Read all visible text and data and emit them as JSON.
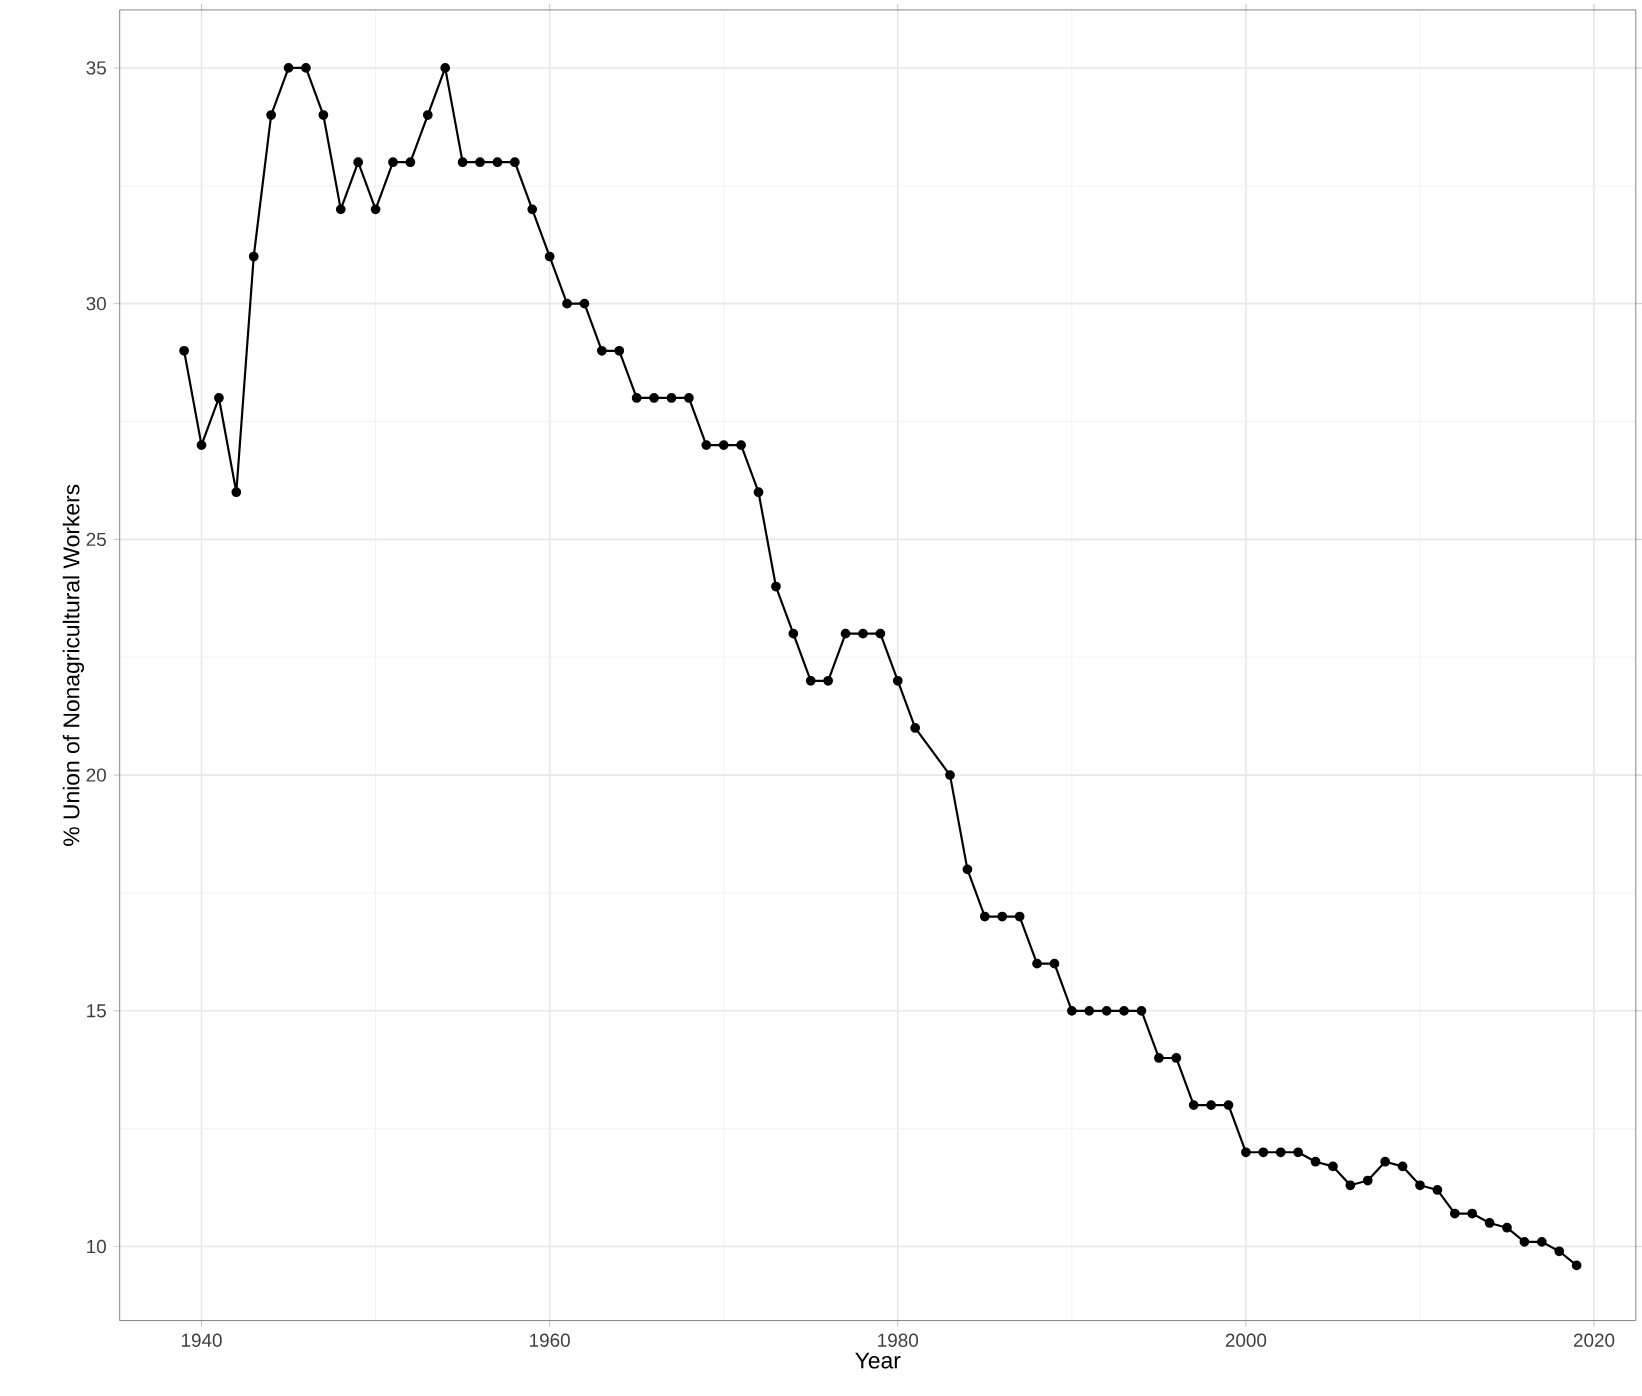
{
  "chart_data": {
    "type": "line",
    "xlabel": "Year",
    "ylabel": "% Union of Nonagricultural Workers",
    "x": [
      1939,
      1940,
      1941,
      1942,
      1943,
      1944,
      1945,
      1946,
      1947,
      1948,
      1949,
      1950,
      1951,
      1952,
      1953,
      1954,
      1955,
      1956,
      1957,
      1958,
      1959,
      1960,
      1961,
      1962,
      1963,
      1964,
      1965,
      1966,
      1967,
      1968,
      1969,
      1970,
      1971,
      1972,
      1973,
      1974,
      1975,
      1976,
      1977,
      1978,
      1979,
      1980,
      1981,
      1983,
      1984,
      1985,
      1986,
      1987,
      1988,
      1989,
      1990,
      1991,
      1992,
      1993,
      1994,
      1995,
      1996,
      1997,
      1998,
      1999,
      2000,
      2001,
      2002,
      2003,
      2004,
      2005,
      2006,
      2007,
      2008,
      2009,
      2010,
      2011,
      2012,
      2013,
      2014,
      2015,
      2016,
      2017,
      2018,
      2019
    ],
    "series": [
      {
        "color": "#000000",
        "values": [
          29,
          27,
          28,
          26,
          31,
          34,
          35,
          35,
          34,
          32,
          33,
          32,
          33,
          33,
          34,
          35,
          33,
          33,
          33,
          33,
          32,
          31,
          30,
          30,
          29,
          29,
          28,
          28,
          28,
          28,
          27,
          27,
          27,
          26,
          24,
          23,
          22,
          22,
          23,
          23,
          23,
          22,
          21,
          20,
          18,
          17,
          17,
          17,
          16,
          16,
          15,
          15,
          15,
          15,
          15,
          14,
          14,
          13,
          13,
          13,
          12,
          12,
          12,
          12,
          11.8,
          11.7,
          11.3,
          11.4,
          11.8,
          11.7,
          11.3,
          11.2,
          10.7,
          10.7,
          10.5,
          10.4,
          10.1,
          10.1,
          9.9,
          9.6
        ]
      }
    ],
    "xlim": [
      1935.3,
      2022.4
    ],
    "ylim": [
      8.43,
      36.23
    ],
    "xticks": [
      1940,
      1960,
      1980,
      2000,
      2020
    ],
    "yticks": [
      10,
      15,
      20,
      25,
      30,
      35
    ],
    "grid": true,
    "marker": "circle",
    "line_style": "solid"
  }
}
